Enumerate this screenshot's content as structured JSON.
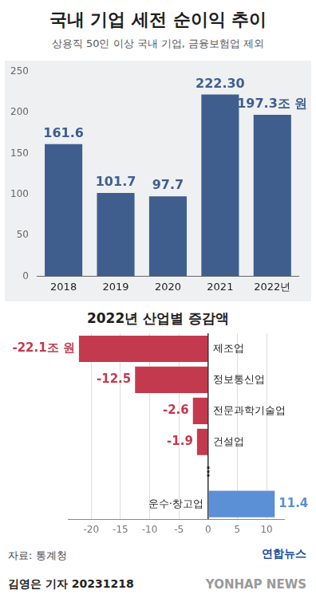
{
  "chart_data": [
    {
      "type": "bar",
      "title": "국내 기업 세전 순이익 추이",
      "subtitle": "상용직 50인 이상 국내 기업, 금융보험업 제외",
      "categories": [
        "2018",
        "2019",
        "2020",
        "2021",
        "2022년"
      ],
      "values": [
        161.6,
        101.7,
        97.7,
        222.3,
        197.3
      ],
      "value_labels": [
        "161.6",
        "101.7",
        "97.7",
        "222.30",
        "197.3조 원"
      ],
      "color": "#3f5e8e",
      "ylim": [
        0,
        250
      ],
      "yticks": [
        0,
        50,
        100,
        150,
        200,
        250
      ],
      "grid": false,
      "data_labels": true
    },
    {
      "type": "bar",
      "orientation": "horizontal",
      "title": "2022년 산업별 증감액",
      "categories": [
        "제조업",
        "정보통신업",
        "전문과학기술업",
        "건설업",
        "⋮",
        "운수·창고업"
      ],
      "values": [
        -22.1,
        -12.5,
        -2.6,
        -1.9,
        null,
        11.4
      ],
      "value_labels": [
        "-22.1조 원",
        "-12.5",
        "-2.6",
        "-1.9",
        null,
        "11.4"
      ],
      "colors": [
        "#c33a4e",
        "#c33a4e",
        "#c33a4e",
        "#c33a4e",
        null,
        "#5b8fd6"
      ],
      "xlim": [
        -24,
        13
      ],
      "xticks": [
        -20,
        -15,
        -10,
        -5,
        0,
        5,
        10
      ],
      "grid": true,
      "data_labels": true
    }
  ],
  "footer": {
    "source": "자료: 통계청",
    "logo": "연합뉴스",
    "credit": "김영은 기자 20231218",
    "watermark": "YONHAP NEWS"
  }
}
